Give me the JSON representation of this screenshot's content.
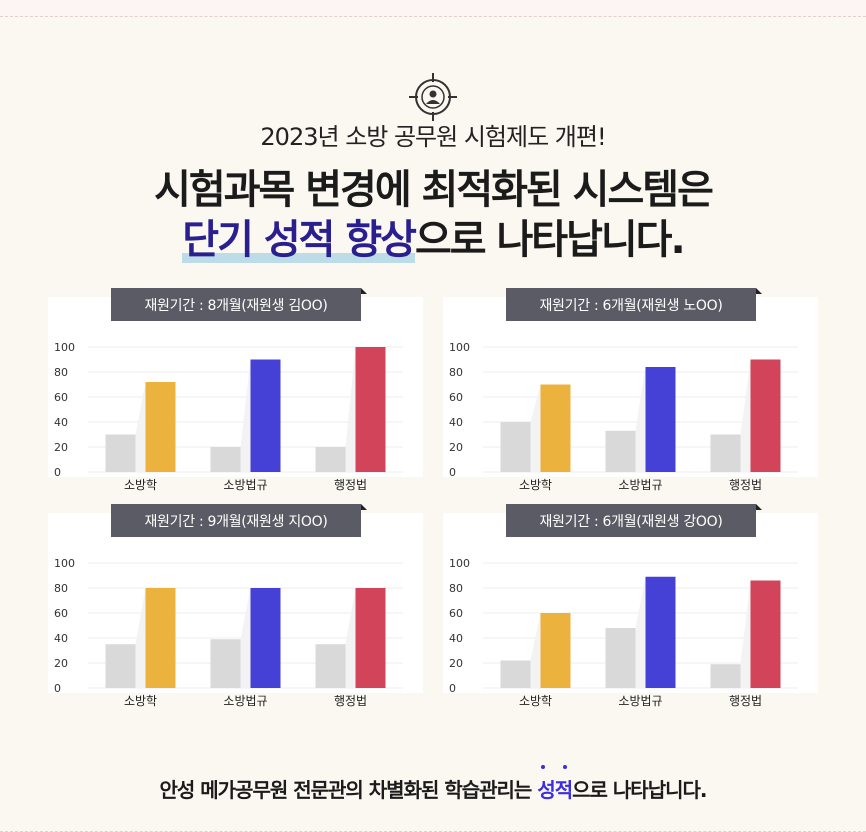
{
  "header": {
    "icon": "target-user-icon",
    "subtitle": "2023년 소방 공무원 시험제도 개편!",
    "line1": "시험과목 변경에 최적화된 시스템은",
    "line2_accent": "단기 성적 향상",
    "line2_rest": "으로 나타납니다."
  },
  "colors": {
    "bar_before": "#d9d9d9",
    "series_colors": [
      "#ebb33e",
      "#4540d6",
      "#d2445a"
    ],
    "accent": "#2a1f8f"
  },
  "footer": {
    "before": "안성 메가공무원 전문관의 차별화된 학습관리는 ",
    "emph": "성적",
    "after": "으로 나타납니다."
  },
  "chart_data": [
    {
      "type": "bar",
      "title": "재원기간 : 8개월(재원생 김OO)",
      "categories": [
        "소방학",
        "소방법규",
        "행정법"
      ],
      "before": [
        30,
        20,
        20
      ],
      "after": [
        72,
        90,
        100
      ],
      "ylim": [
        0,
        100
      ],
      "yticks": [
        0,
        20,
        40,
        60,
        80,
        100
      ]
    },
    {
      "type": "bar",
      "title": "재원기간 : 6개월(재원생 노OO)",
      "categories": [
        "소방학",
        "소방법규",
        "행정법"
      ],
      "before": [
        40,
        33,
        30
      ],
      "after": [
        70,
        84,
        90
      ],
      "ylim": [
        0,
        100
      ],
      "yticks": [
        0,
        20,
        40,
        60,
        80,
        100
      ]
    },
    {
      "type": "bar",
      "title": "재원기간 : 9개월(재원생 지OO)",
      "categories": [
        "소방학",
        "소방법규",
        "행정법"
      ],
      "before": [
        35,
        39,
        35
      ],
      "after": [
        80,
        80,
        80
      ],
      "ylim": [
        0,
        100
      ],
      "yticks": [
        0,
        20,
        40,
        60,
        80,
        100
      ]
    },
    {
      "type": "bar",
      "title": "재원기간 : 6개월(재원생 강OO)",
      "categories": [
        "소방학",
        "소방법규",
        "행정법"
      ],
      "before": [
        22,
        48,
        19
      ],
      "after": [
        60,
        89,
        86
      ],
      "ylim": [
        0,
        100
      ],
      "yticks": [
        0,
        20,
        40,
        60,
        80,
        100
      ]
    }
  ]
}
